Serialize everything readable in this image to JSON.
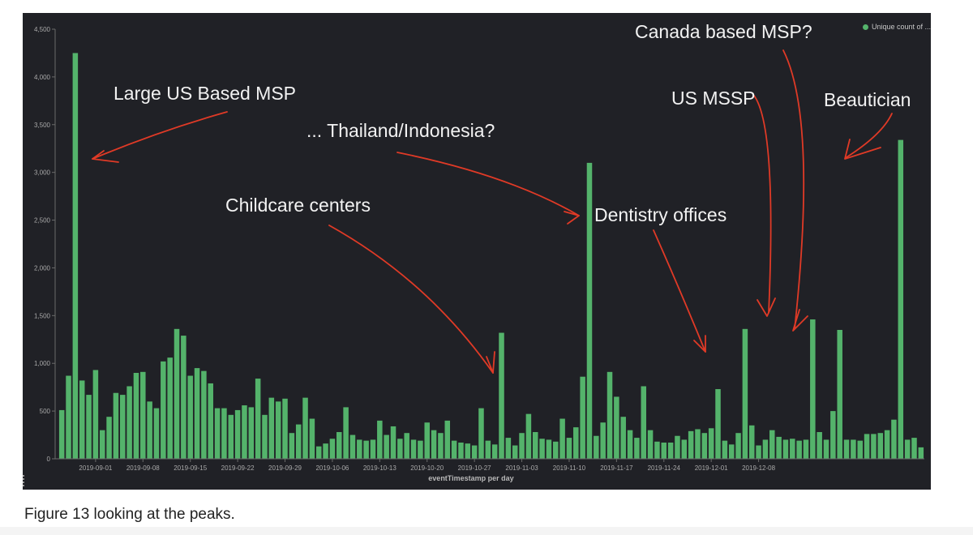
{
  "chart_data": {
    "type": "bar",
    "xlabel": "eventTimestamp per day",
    "ylabel": "",
    "ylim": [
      0,
      4500
    ],
    "y_ticks": [
      "0",
      "500",
      "1,000",
      "1,500",
      "2,000",
      "2,500",
      "3,000",
      "3,500",
      "4,000",
      "4,500"
    ],
    "x_tick_labels": [
      "2019-09-01",
      "2019-09-08",
      "2019-09-15",
      "2019-09-22",
      "2019-09-29",
      "2019-10-06",
      "2019-10-13",
      "2019-10-20",
      "2019-10-27",
      "2019-11-03",
      "2019-11-10",
      "2019-11-17",
      "2019-11-24",
      "2019-12-01",
      "2019-12-08"
    ],
    "first_tick_index": 5,
    "tick_every": 7,
    "grid": false,
    "legend_placement": "top-right",
    "series": [
      {
        "name": "Unique count of ...",
        "color": "#54b36b",
        "values": [
          510,
          870,
          4250,
          820,
          670,
          930,
          300,
          440,
          690,
          670,
          760,
          900,
          910,
          600,
          530,
          1020,
          1060,
          1360,
          1290,
          870,
          950,
          920,
          790,
          530,
          530,
          460,
          510,
          560,
          540,
          840,
          460,
          640,
          600,
          630,
          270,
          360,
          640,
          420,
          130,
          160,
          210,
          280,
          540,
          250,
          200,
          190,
          200,
          400,
          250,
          340,
          210,
          270,
          200,
          190,
          380,
          300,
          270,
          400,
          190,
          170,
          160,
          140,
          530,
          190,
          150,
          1320,
          220,
          140,
          270,
          470,
          280,
          210,
          200,
          180,
          420,
          220,
          330,
          860,
          3100,
          240,
          380,
          910,
          650,
          440,
          300,
          220,
          760,
          300,
          180,
          170,
          170,
          240,
          200,
          290,
          310,
          270,
          320,
          730,
          190,
          150,
          270,
          1360,
          350,
          140,
          200,
          300,
          230,
          200,
          210,
          190,
          200,
          1460,
          280,
          200,
          500,
          1350,
          200,
          200,
          190,
          260,
          260,
          270,
          300,
          410,
          3340,
          200,
          220,
          120
        ]
      }
    ],
    "annotations": [
      {
        "text": "Large US Based MSP",
        "target_index": 2
      },
      {
        "text": "... Thailand/Indonesia?",
        "target_index": 78
      },
      {
        "text": "Childcare centers",
        "target_index": 65
      },
      {
        "text": "Dentistry offices",
        "target_index": 101
      },
      {
        "text": "US MSSP",
        "target_index": 111
      },
      {
        "text": "Canada based MSP?",
        "target_index": 115
      },
      {
        "text": "Beautician",
        "target_index": 124
      }
    ],
    "annotation_color": "#e03a26"
  },
  "caption": "Figure 13 looking at the peaks."
}
